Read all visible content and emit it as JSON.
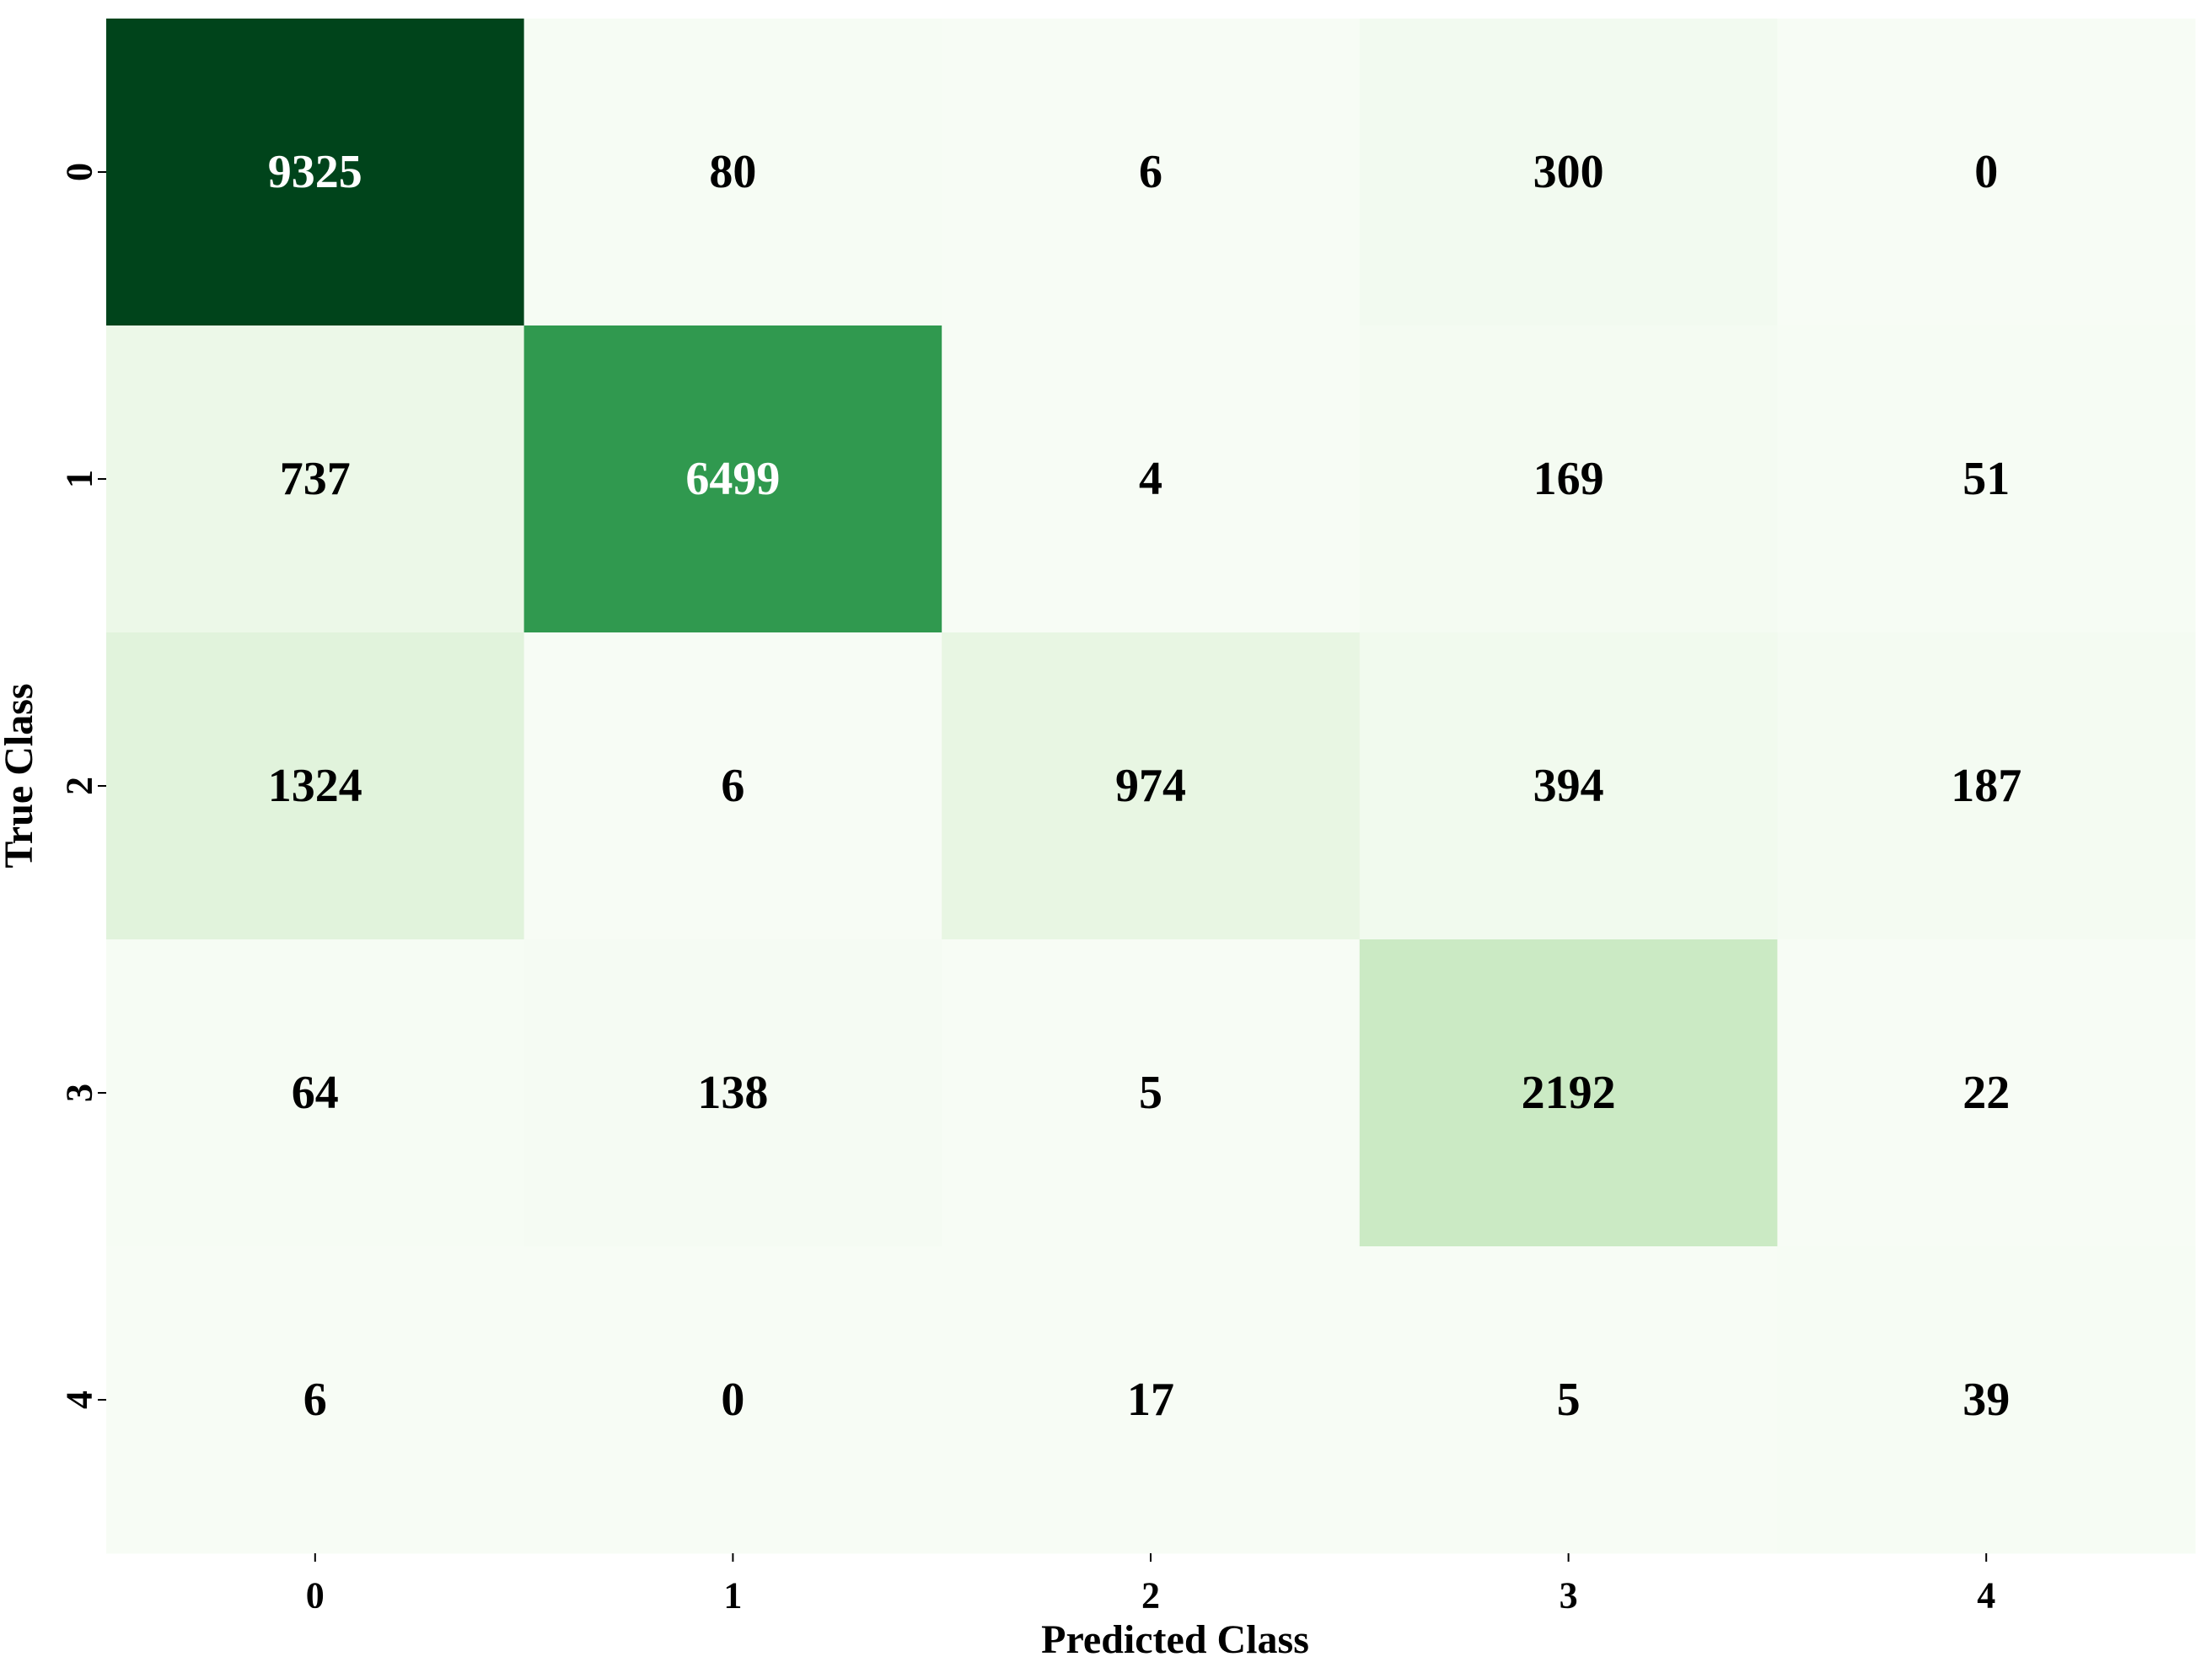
{
  "chart_data": {
    "type": "heatmap",
    "title": "",
    "xlabel": "Predicted Class",
    "ylabel": "True Class",
    "x_categories": [
      "0",
      "1",
      "2",
      "3",
      "4"
    ],
    "y_categories": [
      "0",
      "1",
      "2",
      "3",
      "4"
    ],
    "values": [
      [
        9325,
        80,
        6,
        300,
        0
      ],
      [
        737,
        6499,
        4,
        169,
        51
      ],
      [
        1324,
        6,
        974,
        394,
        187
      ],
      [
        64,
        138,
        5,
        2192,
        22
      ],
      [
        6,
        0,
        17,
        5,
        39
      ]
    ],
    "colormap": "Greens",
    "color_low": "#f7fcf5",
    "color_high": "#00441b",
    "annotation_dark_color": "#000000",
    "annotation_light_color": "#ffffff",
    "colorbar": false
  }
}
